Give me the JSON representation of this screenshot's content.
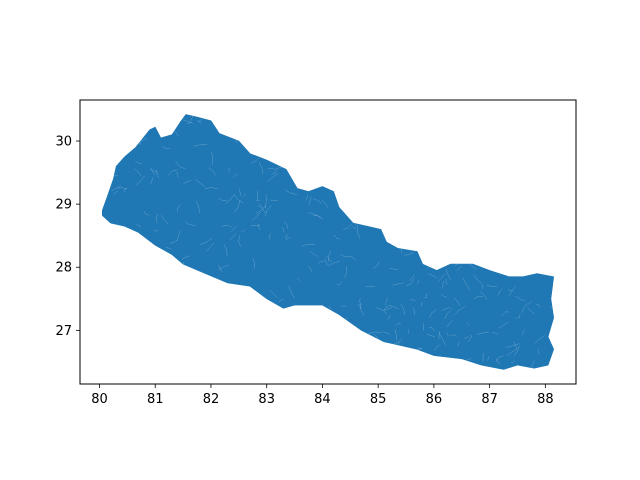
{
  "figure": {
    "background": "#ffffff",
    "fill_color": "#1f77b4",
    "edge_color": "#ffffff"
  },
  "chart_data": {
    "type": "map",
    "title": "",
    "xlabel": "",
    "ylabel": "",
    "grid": false,
    "legend": "none",
    "xlim": [
      79.65,
      88.55
    ],
    "ylim": [
      26.15,
      30.65
    ],
    "xticks": [
      80,
      81,
      82,
      83,
      84,
      85,
      86,
      87,
      88
    ],
    "yticks": [
      27,
      28,
      29,
      30
    ],
    "xtick_labels": [
      "80",
      "81",
      "82",
      "83",
      "84",
      "85",
      "86",
      "87",
      "88"
    ],
    "ytick_labels": [
      "27",
      "28",
      "29",
      "30"
    ],
    "region": {
      "name": "",
      "outline_lonlat": [
        [
          80.05,
          28.9
        ],
        [
          80.15,
          29.15
        ],
        [
          80.25,
          29.4
        ],
        [
          80.3,
          29.6
        ],
        [
          80.45,
          29.75
        ],
        [
          80.65,
          29.9
        ],
        [
          80.9,
          30.18
        ],
        [
          81.0,
          30.22
        ],
        [
          81.1,
          30.05
        ],
        [
          81.3,
          30.1
        ],
        [
          81.45,
          30.3
        ],
        [
          81.55,
          30.42
        ],
        [
          81.75,
          30.38
        ],
        [
          82.0,
          30.32
        ],
        [
          82.15,
          30.12
        ],
        [
          82.5,
          30.0
        ],
        [
          82.7,
          29.8
        ],
        [
          83.0,
          29.7
        ],
        [
          83.35,
          29.55
        ],
        [
          83.55,
          29.25
        ],
        [
          83.75,
          29.2
        ],
        [
          84.0,
          29.28
        ],
        [
          84.2,
          29.2
        ],
        [
          84.3,
          28.95
        ],
        [
          84.55,
          28.7
        ],
        [
          84.8,
          28.65
        ],
        [
          85.05,
          28.6
        ],
        [
          85.15,
          28.4
        ],
        [
          85.35,
          28.3
        ],
        [
          85.7,
          28.25
        ],
        [
          85.8,
          28.05
        ],
        [
          86.05,
          27.95
        ],
        [
          86.3,
          28.05
        ],
        [
          86.55,
          28.05
        ],
        [
          86.7,
          28.05
        ],
        [
          87.0,
          27.95
        ],
        [
          87.35,
          27.85
        ],
        [
          87.6,
          27.85
        ],
        [
          87.85,
          27.9
        ],
        [
          88.15,
          27.85
        ],
        [
          88.1,
          27.5
        ],
        [
          88.15,
          27.2
        ],
        [
          88.05,
          26.9
        ],
        [
          88.15,
          26.7
        ],
        [
          88.05,
          26.45
        ],
        [
          87.8,
          26.4
        ],
        [
          87.5,
          26.45
        ],
        [
          87.25,
          26.38
        ],
        [
          86.85,
          26.45
        ],
        [
          86.5,
          26.55
        ],
        [
          86.0,
          26.6
        ],
        [
          85.7,
          26.7
        ],
        [
          85.3,
          26.78
        ],
        [
          85.1,
          26.82
        ],
        [
          84.7,
          27.0
        ],
        [
          84.3,
          27.25
        ],
        [
          84.0,
          27.4
        ],
        [
          83.5,
          27.4
        ],
        [
          83.3,
          27.35
        ],
        [
          83.0,
          27.5
        ],
        [
          82.7,
          27.7
        ],
        [
          82.3,
          27.75
        ],
        [
          81.9,
          27.9
        ],
        [
          81.5,
          28.05
        ],
        [
          81.3,
          28.2
        ],
        [
          81.0,
          28.35
        ],
        [
          80.7,
          28.55
        ],
        [
          80.45,
          28.65
        ],
        [
          80.2,
          28.7
        ],
        [
          80.05,
          28.82
        ]
      ]
    }
  }
}
